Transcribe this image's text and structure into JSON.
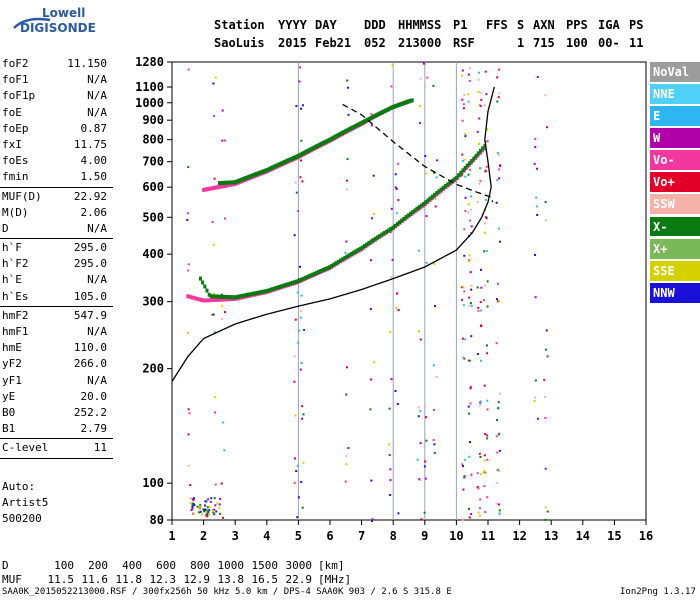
{
  "logo": {
    "line1": "Lowell",
    "line2": "DIGISONDE"
  },
  "header": {
    "row1": [
      "Station",
      "YYYY",
      "DAY",
      "DDD",
      "HHMMSS",
      "P1",
      "FFS",
      "S",
      "AXN",
      "PPS",
      "IGA",
      "PS"
    ],
    "row2": [
      "SaoLuis",
      "2015",
      "Feb21",
      "052",
      "213000",
      "RSF",
      "",
      "1",
      "715",
      "100",
      "00-",
      "11"
    ]
  },
  "params": [
    {
      "label": "foF2",
      "value": "11.150"
    },
    {
      "label": "foF1",
      "value": "N/A"
    },
    {
      "label": "foF1p",
      "value": "N/A"
    },
    {
      "label": "foE",
      "value": "N/A"
    },
    {
      "label": "foEp",
      "value": "0.87"
    },
    {
      "label": "fxI",
      "value": "11.75"
    },
    {
      "label": "foEs",
      "value": "4.00"
    },
    {
      "label": "fmin",
      "value": "1.50"
    },
    {
      "label": "MUF(D)",
      "value": "22.92"
    },
    {
      "label": "M(D)",
      "value": "2.06"
    },
    {
      "label": "D",
      "value": "N/A"
    },
    {
      "label": "h`F",
      "value": "295.0"
    },
    {
      "label": "h`F2",
      "value": "295.0"
    },
    {
      "label": "h`E",
      "value": "N/A"
    },
    {
      "label": "h`Es",
      "value": "105.0"
    },
    {
      "label": "hmF2",
      "value": "547.9"
    },
    {
      "label": "hmF1",
      "value": "N/A"
    },
    {
      "label": "hmE",
      "value": "110.0"
    },
    {
      "label": "yF2",
      "value": "266.0"
    },
    {
      "label": "yF1",
      "value": "N/A"
    },
    {
      "label": "yE",
      "value": "20.0"
    },
    {
      "label": "B0",
      "value": "252.2"
    },
    {
      "label": "B1",
      "value": "2.79"
    },
    {
      "label": "C-level",
      "value": "11"
    }
  ],
  "auto": {
    "line1": "Auto:",
    "line2": "Artist5",
    "line3": "500200"
  },
  "legend": [
    {
      "label": "NoVal",
      "color": "#9c9c9c"
    },
    {
      "label": "NNE",
      "color": "#4fd0f7"
    },
    {
      "label": "E",
      "color": "#2eb6f2"
    },
    {
      "label": "W",
      "color": "#b000a8"
    },
    {
      "label": "Vo-",
      "color": "#f2389e"
    },
    {
      "label": "Vo+",
      "color": "#e0002a"
    },
    {
      "label": "SSW",
      "color": "#f4b2a8"
    },
    {
      "label": "X-",
      "color": "#0a7a12"
    },
    {
      "label": "X+",
      "color": "#7ab85a"
    },
    {
      "label": "SSE",
      "color": "#d6d000"
    },
    {
      "label": "NNW",
      "color": "#1a10d8"
    }
  ],
  "chart_data": {
    "type": "scatter",
    "title": "",
    "xlabel": "",
    "ylabel": "",
    "xlim": [
      1,
      16
    ],
    "ylim": [
      80,
      1280
    ],
    "x_scale": "linear",
    "y_scale": "log",
    "x_ticks": [
      "1",
      "2",
      "3",
      "4",
      "5",
      "6",
      "7",
      "8",
      "9",
      "10",
      "11",
      "12",
      "13",
      "14",
      "15",
      "16"
    ],
    "y_ticks": [
      "80",
      "100",
      "200",
      "300",
      "400",
      "500",
      "600",
      "700",
      "800",
      "900",
      "1000",
      "1100",
      "1280"
    ],
    "y_tick_values": [
      80,
      100,
      200,
      300,
      400,
      500,
      600,
      700,
      800,
      900,
      1000,
      1100,
      1280
    ],
    "grid_x": [
      5,
      8,
      9,
      10
    ],
    "series": [
      {
        "style": "pink-trace",
        "x": [
          1.5,
          2.0,
          3.0,
          4.0,
          5.0,
          6.0,
          7.0,
          8.0,
          9.0,
          10.0,
          10.5,
          10.9
        ],
        "y": [
          310,
          302,
          305,
          318,
          338,
          368,
          412,
          468,
          540,
          630,
          700,
          760
        ]
      },
      {
        "style": "green-trace",
        "x": [
          1.9,
          2.2,
          3.0,
          4.0,
          5.0,
          6.0,
          7.0,
          8.0,
          9.0,
          10.0,
          10.5,
          10.9
        ],
        "y": [
          345,
          310,
          308,
          320,
          340,
          370,
          415,
          470,
          545,
          635,
          705,
          770
        ]
      },
      {
        "style": "pink-trace",
        "x": [
          2.0,
          3.0,
          4.0,
          5.0,
          6.0,
          7.0,
          7.5,
          8.0,
          8.5
        ],
        "y": [
          590,
          612,
          660,
          720,
          795,
          880,
          930,
          975,
          1010
        ]
      },
      {
        "style": "green-trace",
        "x": [
          2.5,
          3.0,
          4.0,
          5.0,
          6.0,
          7.0,
          8.0,
          8.6
        ],
        "y": [
          615,
          618,
          665,
          725,
          800,
          885,
          975,
          1015
        ]
      },
      {
        "style": "profile",
        "x": [
          1.0,
          1.5,
          2.0,
          3.0,
          4.0,
          5.0,
          6.0,
          7.0,
          8.0,
          9.0,
          10.0,
          10.5,
          10.8,
          11.0,
          11.1,
          11.0,
          10.9,
          11.0,
          11.2
        ],
        "y": [
          185,
          215,
          240,
          262,
          278,
          292,
          305,
          323,
          345,
          370,
          410,
          455,
          500,
          548,
          600,
          700,
          800,
          950,
          1100
        ]
      },
      {
        "style": "dashed",
        "x": [
          6.4,
          7.0,
          8.0,
          9.0,
          10.0,
          10.7,
          11.1,
          11.15
        ],
        "y": [
          990,
          930,
          790,
          680,
          610,
          580,
          565,
          548
        ]
      }
    ]
  },
  "footer": {
    "d_label": "D",
    "d_values": [
      "100",
      "200",
      "400",
      "600",
      "800",
      "1000",
      "1500",
      "3000"
    ],
    "d_unit": "[km]",
    "muf_label": "MUF",
    "muf_values": [
      "11.5",
      "11.6",
      "11.8",
      "12.3",
      "12.9",
      "13.8",
      "16.5",
      "22.9"
    ],
    "muf_unit": "[MHz]",
    "filename": "SAA0K_2015052213000.RSF / 300fx256h 50 kHz 5.0 km / DPS-4 SAA0K 903 / 2.6 S 315.8 E",
    "version": "Ion2Png 1.3.17"
  }
}
